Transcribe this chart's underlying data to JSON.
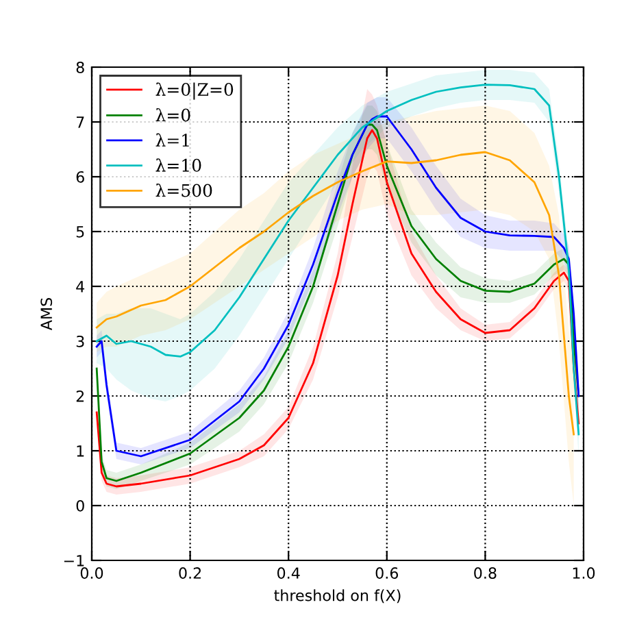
{
  "chart_data": {
    "type": "line",
    "xlabel": "threshold on f(X)",
    "ylabel": "AMS",
    "xlim": [
      0,
      1
    ],
    "ylim": [
      -1,
      8
    ],
    "xticks": [
      {
        "value": 0,
        "label": "0.0"
      },
      0.2,
      0.4,
      0.6,
      0.8,
      {
        "value": 1,
        "label": "1.0"
      }
    ],
    "yticks": [
      {
        "value": -1,
        "label": "−1"
      },
      0,
      1,
      2,
      3,
      4,
      5,
      6,
      7,
      8
    ],
    "grid": true,
    "legend": "top left",
    "line_style": "solid",
    "marker": "none",
    "series": [
      {
        "name": "λ=0|Z=0",
        "color": "#ff0000",
        "x": [
          0.01,
          0.02,
          0.03,
          0.05,
          0.1,
          0.2,
          0.3,
          0.35,
          0.4,
          0.45,
          0.5,
          0.53,
          0.56,
          0.57,
          0.58,
          0.6,
          0.65,
          0.7,
          0.75,
          0.8,
          0.85,
          0.9,
          0.94,
          0.96,
          0.97,
          0.98,
          0.99
        ],
        "values": [
          1.7,
          0.6,
          0.4,
          0.35,
          0.4,
          0.55,
          0.85,
          1.1,
          1.6,
          2.6,
          4.2,
          5.5,
          6.7,
          6.85,
          6.7,
          5.9,
          4.6,
          3.9,
          3.4,
          3.15,
          3.2,
          3.6,
          4.1,
          4.25,
          4.1,
          2.5,
          1.5
        ],
        "lower": [
          1.5,
          0.45,
          0.25,
          0.2,
          0.25,
          0.4,
          0.7,
          0.9,
          1.4,
          2.3,
          3.8,
          4.9,
          6.0,
          6.2,
          6.1,
          5.3,
          4.2,
          3.6,
          3.2,
          3.0,
          3.05,
          3.45,
          3.95,
          4.1,
          3.9,
          2.2,
          1.2
        ],
        "upper": [
          1.9,
          0.75,
          0.55,
          0.5,
          0.55,
          0.7,
          1.0,
          1.3,
          1.8,
          2.9,
          4.6,
          6.2,
          7.6,
          7.5,
          7.3,
          6.6,
          5.0,
          4.2,
          3.6,
          3.3,
          3.35,
          3.75,
          4.25,
          4.4,
          4.3,
          2.8,
          1.8
        ]
      },
      {
        "name": "λ=0",
        "color": "#008000",
        "x": [
          0.01,
          0.02,
          0.03,
          0.05,
          0.1,
          0.2,
          0.3,
          0.35,
          0.4,
          0.45,
          0.5,
          0.53,
          0.56,
          0.57,
          0.58,
          0.6,
          0.65,
          0.7,
          0.75,
          0.8,
          0.85,
          0.9,
          0.94,
          0.96,
          0.97,
          0.98,
          0.99
        ],
        "values": [
          2.5,
          0.8,
          0.5,
          0.45,
          0.6,
          0.95,
          1.6,
          2.1,
          2.9,
          4.0,
          5.5,
          6.4,
          6.95,
          6.95,
          6.85,
          6.2,
          5.1,
          4.5,
          4.1,
          3.92,
          3.9,
          4.05,
          4.4,
          4.5,
          4.4,
          3.0,
          2.0
        ],
        "lower": [
          2.3,
          0.65,
          0.35,
          0.3,
          0.45,
          0.75,
          1.35,
          1.85,
          2.6,
          3.7,
          5.1,
          6.0,
          6.5,
          6.5,
          6.4,
          5.8,
          4.8,
          4.2,
          3.8,
          3.7,
          3.7,
          3.85,
          4.2,
          4.3,
          4.2,
          2.7,
          1.7
        ],
        "upper": [
          2.7,
          0.95,
          0.65,
          0.6,
          0.75,
          1.15,
          1.85,
          2.35,
          3.2,
          4.3,
          5.9,
          6.8,
          7.3,
          7.3,
          7.2,
          6.6,
          5.4,
          4.8,
          4.35,
          4.15,
          4.1,
          4.25,
          4.6,
          4.7,
          4.6,
          3.3,
          2.3
        ]
      },
      {
        "name": "λ=1",
        "color": "#0000ff",
        "x": [
          0.01,
          0.02,
          0.03,
          0.05,
          0.1,
          0.2,
          0.3,
          0.35,
          0.4,
          0.45,
          0.5,
          0.53,
          0.56,
          0.57,
          0.58,
          0.6,
          0.65,
          0.7,
          0.75,
          0.8,
          0.85,
          0.9,
          0.94,
          0.96,
          0.97,
          0.98,
          0.99
        ],
        "values": [
          2.9,
          3.0,
          2.2,
          1.0,
          0.9,
          1.2,
          1.9,
          2.5,
          3.3,
          4.4,
          5.7,
          6.4,
          6.95,
          7.05,
          7.1,
          7.1,
          6.5,
          5.8,
          5.25,
          5.0,
          4.93,
          4.92,
          4.9,
          4.7,
          4.5,
          3.5,
          2.0
        ],
        "lower": [
          2.7,
          2.8,
          2.0,
          0.85,
          0.75,
          1.05,
          1.7,
          2.3,
          3.05,
          4.1,
          5.3,
          6.0,
          6.5,
          6.6,
          6.7,
          6.7,
          6.1,
          5.4,
          4.9,
          4.7,
          4.65,
          4.65,
          4.65,
          4.45,
          4.25,
          3.2,
          1.7
        ],
        "upper": [
          3.1,
          3.2,
          2.4,
          1.15,
          1.05,
          1.35,
          2.1,
          2.7,
          3.55,
          4.7,
          6.1,
          6.8,
          7.35,
          7.4,
          7.45,
          7.45,
          6.9,
          6.2,
          5.6,
          5.3,
          5.2,
          5.2,
          5.15,
          4.95,
          4.75,
          3.8,
          2.3
        ]
      },
      {
        "name": "λ=10",
        "color": "#00bfbf",
        "x": [
          0.01,
          0.03,
          0.05,
          0.08,
          0.12,
          0.15,
          0.18,
          0.2,
          0.25,
          0.3,
          0.35,
          0.4,
          0.45,
          0.5,
          0.55,
          0.6,
          0.65,
          0.7,
          0.75,
          0.8,
          0.85,
          0.9,
          0.93,
          0.95,
          0.97,
          0.98,
          0.99
        ],
        "values": [
          3.0,
          3.1,
          2.95,
          3.0,
          2.9,
          2.75,
          2.72,
          2.8,
          3.2,
          3.8,
          4.5,
          5.2,
          5.8,
          6.4,
          6.9,
          7.2,
          7.4,
          7.55,
          7.63,
          7.68,
          7.67,
          7.6,
          7.3,
          6.0,
          4.3,
          2.5,
          1.3
        ],
        "lower": [
          2.6,
          2.5,
          2.3,
          2.1,
          1.95,
          1.9,
          2.0,
          2.1,
          2.5,
          3.1,
          3.8,
          4.5,
          5.2,
          5.9,
          6.5,
          6.9,
          7.1,
          7.25,
          7.35,
          7.4,
          7.4,
          7.35,
          7.0,
          5.7,
          4.0,
          2.2,
          0.9
        ],
        "upper": [
          3.4,
          3.5,
          3.5,
          3.6,
          3.6,
          3.5,
          3.4,
          3.5,
          3.9,
          4.5,
          5.2,
          5.9,
          6.4,
          6.9,
          7.3,
          7.55,
          7.7,
          7.85,
          7.9,
          7.95,
          7.95,
          7.9,
          7.6,
          6.3,
          4.6,
          2.8,
          1.6
        ]
      },
      {
        "name": "λ=500",
        "color": "#ffa500",
        "x": [
          0.01,
          0.03,
          0.05,
          0.1,
          0.15,
          0.2,
          0.25,
          0.3,
          0.35,
          0.4,
          0.45,
          0.5,
          0.55,
          0.6,
          0.65,
          0.7,
          0.75,
          0.8,
          0.85,
          0.9,
          0.93,
          0.95,
          0.97,
          0.98
        ],
        "values": [
          3.25,
          3.4,
          3.45,
          3.65,
          3.75,
          4.0,
          4.35,
          4.7,
          5.0,
          5.35,
          5.65,
          5.9,
          6.1,
          6.28,
          6.25,
          6.3,
          6.4,
          6.45,
          6.3,
          5.9,
          5.3,
          4.2,
          2.0,
          1.3
        ],
        "lower": [
          2.8,
          2.9,
          2.9,
          3.1,
          3.2,
          3.4,
          3.7,
          4.0,
          4.3,
          4.6,
          4.9,
          5.2,
          5.4,
          5.5,
          5.3,
          5.3,
          5.35,
          5.4,
          5.3,
          5.0,
          4.5,
          3.0,
          0.8,
          0.0
        ],
        "upper": [
          3.7,
          3.9,
          4.0,
          4.2,
          4.4,
          4.6,
          5.0,
          5.4,
          5.7,
          6.1,
          6.4,
          6.6,
          6.8,
          7.0,
          7.1,
          7.2,
          7.25,
          7.3,
          7.2,
          6.8,
          6.2,
          5.3,
          3.2,
          2.5
        ]
      }
    ]
  }
}
